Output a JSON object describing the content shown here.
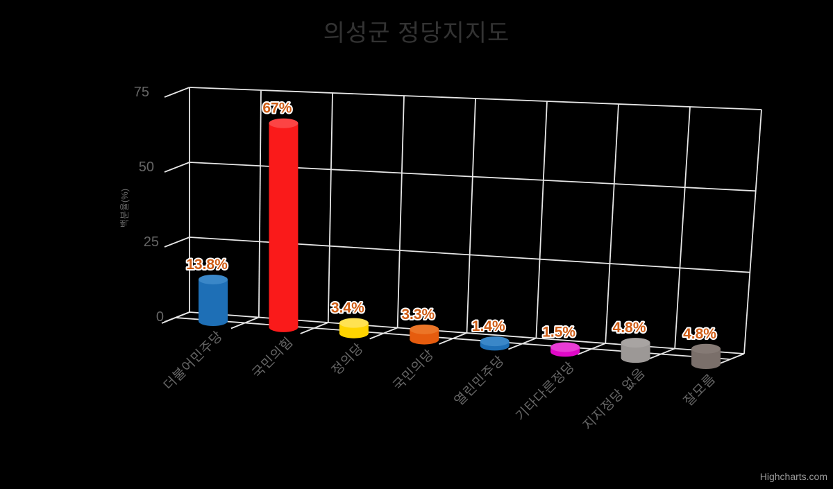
{
  "chart_data": {
    "type": "bar",
    "subtype": "3d-cylinder",
    "title": "의성군 정당지지도",
    "categories": [
      "더불어민주당",
      "국민의힘",
      "정의당",
      "국민의당",
      "열린민주당",
      "기타다른정당",
      "지지정당 없음",
      "잘모름"
    ],
    "values": [
      13.8,
      67,
      3.4,
      3.3,
      1.4,
      1.5,
      4.8,
      4.8
    ],
    "data_labels": [
      "13.8%",
      "67%",
      "3.4%",
      "3.3%",
      "1.4%",
      "1.5%",
      "4.8%",
      "4.8%"
    ],
    "bar_colors": [
      "#1e6fb6",
      "#fa1a1a",
      "#ffd400",
      "#e65c0e",
      "#1e6fb6",
      "#e008c8",
      "#9c9896",
      "#7a6f6a"
    ],
    "bar_top_colors": [
      "#3a87c8",
      "#fc4444",
      "#ffe252",
      "#ec7527",
      "#3a87c8",
      "#e93cd5",
      "#a8a4a2",
      "#857a75"
    ],
    "xlabel": "",
    "ylabel": "백분율(%)",
    "yticks": [
      0,
      25,
      50,
      75
    ],
    "ylim": [
      0,
      75
    ],
    "grid": true,
    "legend": "none",
    "colors": {
      "background": "#000000",
      "title": "#333333",
      "axis_labels": "#666666",
      "grid_lines": "#e6e6e6",
      "data_label": "#cf5d16",
      "data_label_outline": "#ffffff",
      "credits": "#9a9a9a"
    },
    "credits": "Highcharts.com"
  }
}
